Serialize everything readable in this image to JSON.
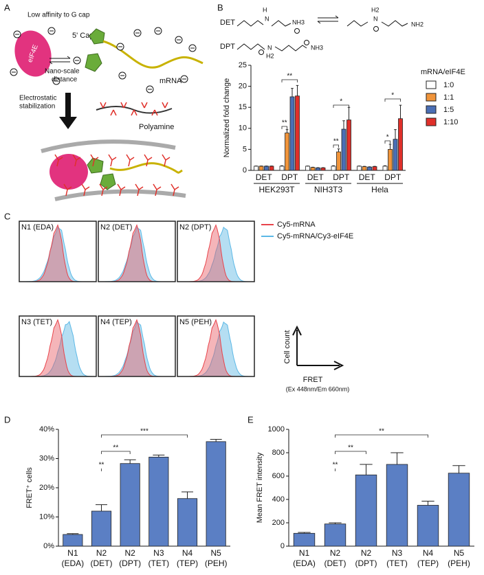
{
  "panel_labels": [
    "A",
    "B",
    "C",
    "D",
    "E"
  ],
  "panel_a": {
    "low_affinity": "Low affinity to G cap",
    "protein": "eIF4E",
    "cap": "5' Cap",
    "mrna": "mRNA",
    "distance": [
      "Nano-scale",
      "distance"
    ],
    "stabilization": [
      "Electrostatic",
      "stabilization"
    ],
    "polyamine": "Polyamine"
  },
  "chemistry": {
    "det": "DET",
    "dpt": "DPT",
    "det_atoms": [
      "H",
      "N",
      "NH3",
      "H2",
      "N",
      "NH2"
    ],
    "dpt_atoms": [
      "N",
      "H2",
      "NH3"
    ]
  },
  "panel_c": {
    "histograms": [
      "N1 (EDA)",
      "N2 (DET)",
      "N2 (DPT)",
      "N3 (TET)",
      "N4 (TEP)",
      "N5 (PEH)"
    ],
    "legend": [
      {
        "name": "Cy5-mRNA",
        "color": "#e8434a"
      },
      {
        "name": "Cy5-mRNA/Cy3-eIF4E",
        "color": "#5bb8e6"
      }
    ],
    "y_axis": "Cell count",
    "x_axis": "FRET",
    "x_axis_note": "(Ex 448nm/Em 660nm)"
  },
  "chart_data": [
    {
      "type": "bar",
      "y_label": "Normalized fold change",
      "legend_title": "mRNA/eIF4E",
      "categories": [
        "DET",
        "DPT",
        "DET",
        "DPT",
        "DET",
        "DPT"
      ],
      "groups": [
        "HEK293T",
        "NIH3T3",
        "Hela"
      ],
      "series": [
        {
          "name": "1:0",
          "color": "#ffffff",
          "values": [
            1,
            1,
            1,
            1,
            1,
            1
          ],
          "errors": [
            0.05,
            0.1,
            0.05,
            0.1,
            0.05,
            0.1
          ]
        },
        {
          "name": "1:1",
          "color": "#f0943a",
          "values": [
            1,
            8.9,
            0.7,
            4.4,
            0.9,
            5
          ],
          "errors": [
            0.05,
            0.8,
            0.05,
            0.7,
            0.05,
            1.2
          ]
        },
        {
          "name": "1:5",
          "color": "#4a6fb5",
          "values": [
            1,
            17.5,
            0.6,
            9.8,
            0.8,
            7.4
          ],
          "errors": [
            0.05,
            2,
            0.05,
            2,
            0.05,
            2.3
          ]
        },
        {
          "name": "1:10",
          "color": "#e0302a",
          "values": [
            1,
            17.7,
            0.6,
            12,
            0.9,
            12.3
          ],
          "errors": [
            0.05,
            2.5,
            0.05,
            3,
            0.05,
            3.2
          ]
        }
      ],
      "ylim": [
        0,
        25
      ],
      "yticks": [
        0,
        5,
        10,
        15,
        20,
        25
      ],
      "annotations": [
        "**",
        "**",
        "**",
        "*",
        "*",
        "*"
      ]
    },
    {
      "type": "bar",
      "y_label": "FRET⁺ cells",
      "categories": [
        "N1",
        "N2",
        "N2",
        "N3",
        "N4",
        "N5"
      ],
      "category_sublabels": [
        "(EDA)",
        "(DET)",
        "(DPT)",
        "(TET)",
        "(TEP)",
        "(PEH)"
      ],
      "values": [
        4,
        12,
        28.3,
        30.5,
        16.3,
        35.8
      ],
      "errors": [
        0.3,
        2.2,
        1.3,
        0.7,
        2.3,
        0.8
      ],
      "color": "#5b7fc4",
      "ylim": [
        0,
        40
      ],
      "yticks": [
        {
          "value": 0,
          "label": "0%"
        },
        {
          "value": 10,
          "label": "10%"
        },
        {
          "value": 20,
          "label": "20%"
        },
        {
          "value": 30,
          "label": "30%"
        },
        {
          "value": 40,
          "label": "40%"
        }
      ],
      "annotations": [
        "**",
        "**",
        "***"
      ]
    },
    {
      "type": "bar",
      "y_label": "Mean FRET intensity",
      "categories": [
        "N1",
        "N2",
        "N2",
        "N3",
        "N4",
        "N5"
      ],
      "category_sublabels": [
        "(EDA)",
        "(DET)",
        "(DPT)",
        "(TET)",
        "(TEP)",
        "(PEH)"
      ],
      "values": [
        110,
        190,
        610,
        700,
        350,
        625
      ],
      "errors": [
        8,
        10,
        90,
        100,
        35,
        65
      ],
      "color": "#5b7fc4",
      "ylim": [
        0,
        1000
      ],
      "yticks": [
        0,
        200,
        400,
        600,
        800,
        1000
      ],
      "annotations": [
        "**",
        "**",
        "**"
      ]
    }
  ]
}
